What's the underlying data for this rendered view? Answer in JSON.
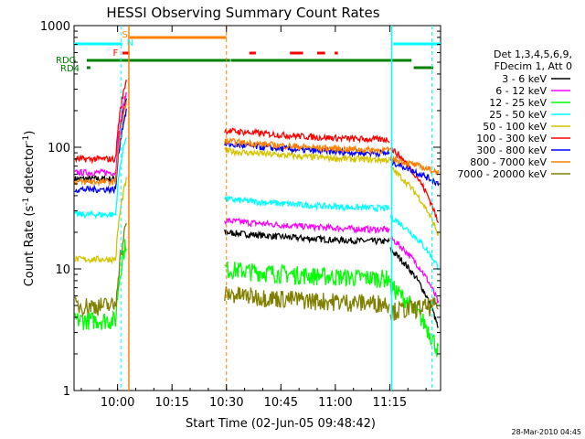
{
  "chart_data": {
    "type": "line",
    "title": "HESSI Observing Summary Count Rates",
    "xlabel": "Start Time (02-Jun-05 09:48:42)",
    "ylabel_main": "Count Rate (s",
    "ylabel_sup": "-1",
    "ylabel_rest": " detector",
    "ylabel_sup2": "-1",
    "ylabel_end": ")",
    "x_range_minutes_after_0948": [
      0,
      101
    ],
    "y_scale": "log",
    "ylim": [
      1,
      1000
    ],
    "x_ticks": [
      {
        "label": "10:00",
        "m": 12
      },
      {
        "label": "10:15",
        "m": 27
      },
      {
        "label": "10:30",
        "m": 42
      },
      {
        "label": "10:45",
        "m": 57
      },
      {
        "label": "11:00",
        "m": 72
      },
      {
        "label": "11:15",
        "m": 87
      }
    ],
    "y_ticks": [
      {
        "label": "1",
        "v": 1
      },
      {
        "label": "10",
        "v": 10
      },
      {
        "label": "100",
        "v": 100
      },
      {
        "label": "1000",
        "v": 1000
      }
    ],
    "legend_header": [
      "Det 1,3,4,5,6,9,",
      "FDecim 1, Att 0"
    ],
    "series": [
      {
        "name": "3 - 6 keV",
        "color": "#000000",
        "pre": 55,
        "post": 16,
        "tail": 3
      },
      {
        "name": "6 - 12 keV",
        "color": "#ff00ff",
        "pre": 62,
        "post": 20,
        "tail": 5
      },
      {
        "name": "12 - 25 keV",
        "color": "#00ff00",
        "pre": 3.8,
        "post": 8,
        "tail": 2
      },
      {
        "name": "25 - 50 keV",
        "color": "#00ffff",
        "pre": 28,
        "post": 30,
        "tail": 10
      },
      {
        "name": "50 - 100 keV",
        "color": "#d4c400",
        "pre": 12,
        "post": 75,
        "tail": 18
      },
      {
        "name": "100 - 300 keV",
        "color": "#ff0000",
        "pre": 80,
        "post": 110,
        "tail": 22
      },
      {
        "name": "300 - 800 keV",
        "color": "#0000ff",
        "pre": 45,
        "post": 85,
        "tail": 50
      },
      {
        "name": "800 - 7000 keV",
        "color": "#ff8000",
        "pre": 52,
        "post": 90,
        "tail": 62
      },
      {
        "name": "7000 - 20000 keV",
        "color": "#808000",
        "pre": 5,
        "post": 5,
        "tail": 5
      }
    ],
    "flags": [
      {
        "label": "S",
        "color": "#ff8000"
      },
      {
        "label": "N",
        "color": "#00ffff"
      },
      {
        "label": "F",
        "color": "#ff0000"
      },
      {
        "label": "RDG",
        "color": "#008000"
      },
      {
        "label": "RD4",
        "color": "#008000"
      }
    ]
  },
  "footer_timestamp": "28-Mar-2010 04:45"
}
